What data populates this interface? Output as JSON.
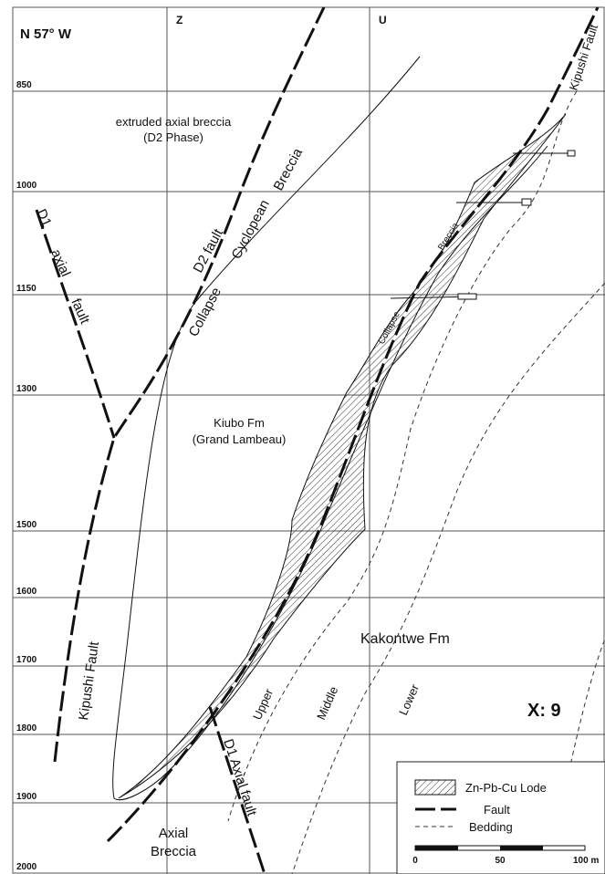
{
  "header": {
    "orientation": "N 57° W",
    "sections": [
      "Z",
      "U"
    ],
    "plate": "X: 9"
  },
  "depths": [
    "850",
    "1000",
    "1150",
    "1300",
    "1500",
    "1600",
    "1700",
    "1800",
    "1900",
    "2000"
  ],
  "labels": {
    "extruded": "extruded axial breccia",
    "phase": "(D2 Phase)",
    "d2_fault": "D2 fault",
    "ccb": [
      "Collapse",
      "Cyclopean",
      "Breccia"
    ],
    "d1_axial_fault": [
      "D1",
      "axial",
      "fault"
    ],
    "kiubo": "Kiubo Fm",
    "grand_lambeau": "(Grand Lambeau)",
    "kipushi_left": "Kipushi  Fault",
    "kipushi_right": "Kipushi Fault",
    "collapse_small": "Collapse",
    "breccia_small": "Breccia",
    "kakontwe": "Kakontwe  Fm",
    "members": [
      "Upper",
      "Middle",
      "Lower"
    ],
    "axial_breccia": [
      "Axial",
      "Breccia"
    ],
    "d1_axial_fault_bottom": "D1  Axial fault"
  },
  "legend": {
    "items": [
      "Zn-Pb-Cu Lode",
      "Fault",
      "Bedding"
    ],
    "scale": [
      "0",
      "50",
      "100 m"
    ]
  }
}
